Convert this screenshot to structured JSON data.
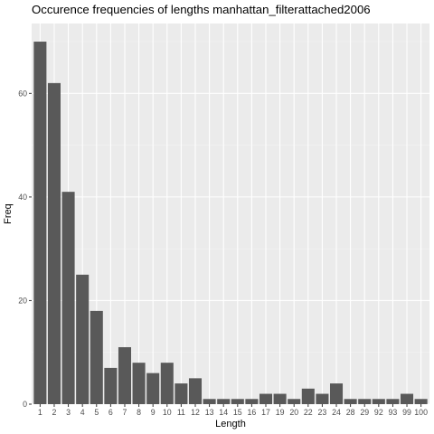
{
  "chart_data": {
    "type": "bar",
    "title": "Occurence frequencies of lengths manhattan_filterattached2006",
    "xlabel": "Length",
    "ylabel": "Freq",
    "categories": [
      "1",
      "2",
      "3",
      "4",
      "5",
      "6",
      "7",
      "8",
      "9",
      "10",
      "11",
      "12",
      "13",
      "14",
      "15",
      "16",
      "17",
      "19",
      "20",
      "22",
      "23",
      "24",
      "28",
      "29",
      "92",
      "93",
      "99",
      "100"
    ],
    "values": [
      70,
      62,
      41,
      25,
      18,
      7,
      11,
      8,
      6,
      8,
      4,
      5,
      1,
      1,
      1,
      1,
      2,
      2,
      1,
      3,
      2,
      4,
      1,
      1,
      1,
      1,
      2,
      1
    ],
    "ylim": [
      0,
      73.5
    ],
    "y_ticks": [
      0,
      20,
      40,
      60
    ],
    "y_tick_labels": [
      "0",
      "20",
      "40",
      "60"
    ],
    "grid": true,
    "legend": "none",
    "colors": {
      "bar": "#595959",
      "panel_background": "#ebebeb",
      "grid_major": "#ffffff",
      "grid_minor": "#f3f3f3",
      "text": "#000000",
      "tick_text": "#4d4d4d"
    }
  }
}
